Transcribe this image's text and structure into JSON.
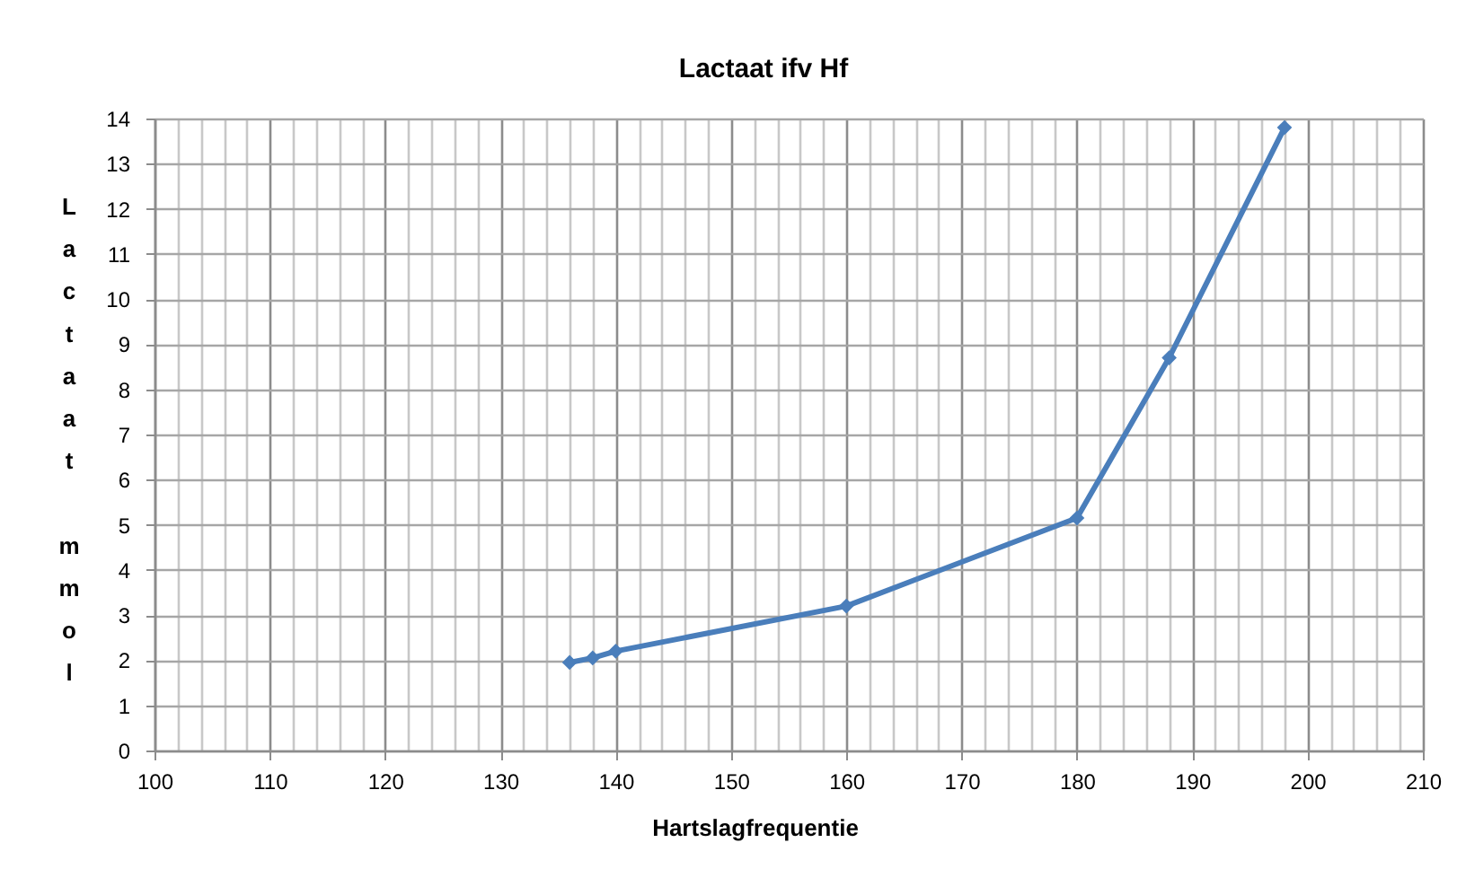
{
  "chart_data": {
    "type": "line",
    "title": "Lactaat ifv Hf",
    "xlabel": "Hartslagfrequentie",
    "ylabel": "Lactaat mmol",
    "x": [
      136,
      138,
      140,
      160,
      180,
      188,
      198
    ],
    "series": [
      {
        "color": "#4a7ebb",
        "values": [
          1.95,
          2.05,
          2.2,
          3.2,
          5.15,
          8.7,
          13.8
        ]
      }
    ],
    "xlim": [
      100,
      210
    ],
    "xticks": [
      100,
      {
        "value": 102,
        "label": null
      },
      {
        "value": 104,
        "label": null
      },
      {
        "value": 106,
        "label": null
      },
      {
        "value": 108,
        "label": null
      },
      110,
      {
        "value": 112,
        "label": null
      },
      {
        "value": 114,
        "label": null
      },
      {
        "value": 116,
        "label": null
      },
      {
        "value": 118,
        "label": null
      },
      120,
      {
        "value": 122,
        "label": null
      },
      {
        "value": 124,
        "label": null
      },
      {
        "value": 126,
        "label": null
      },
      {
        "value": 128,
        "label": null
      },
      130,
      {
        "value": 132,
        "label": null
      },
      {
        "value": 134,
        "label": null
      },
      {
        "value": 136,
        "label": null
      },
      {
        "value": 138,
        "label": null
      },
      140,
      {
        "value": 142,
        "label": null
      },
      {
        "value": 144,
        "label": null
      },
      {
        "value": 146,
        "label": null
      },
      {
        "value": 148,
        "label": null
      },
      150,
      {
        "value": 152,
        "label": null
      },
      {
        "value": 154,
        "label": null
      },
      {
        "value": 156,
        "label": null
      },
      {
        "value": 158,
        "label": null
      },
      160,
      {
        "value": 162,
        "label": null
      },
      {
        "value": 164,
        "label": null
      },
      {
        "value": 166,
        "label": null
      },
      {
        "value": 168,
        "label": null
      },
      170,
      {
        "value": 172,
        "label": null
      },
      {
        "value": 174,
        "label": null
      },
      {
        "value": 176,
        "label": null
      },
      {
        "value": 178,
        "label": null
      },
      180,
      {
        "value": 182,
        "label": null
      },
      {
        "value": 184,
        "label": null
      },
      {
        "value": 186,
        "label": null
      },
      {
        "value": 188,
        "label": null
      },
      190,
      {
        "value": 192,
        "label": null
      },
      {
        "value": 194,
        "label": null
      },
      {
        "value": 196,
        "label": null
      },
      {
        "value": 198,
        "label": null
      },
      200,
      {
        "value": 202,
        "label": null
      },
      {
        "value": 204,
        "label": null
      },
      {
        "value": 206,
        "label": null
      },
      {
        "value": 208,
        "label": null
      },
      210
    ],
    "ylim": [
      0,
      14
    ],
    "yticks": [
      0,
      1,
      2,
      3,
      4,
      5,
      6,
      7,
      8,
      9,
      10,
      11,
      12,
      13,
      14
    ],
    "grid": true,
    "legend": false,
    "marker": "diamond",
    "line_style": "solid"
  }
}
